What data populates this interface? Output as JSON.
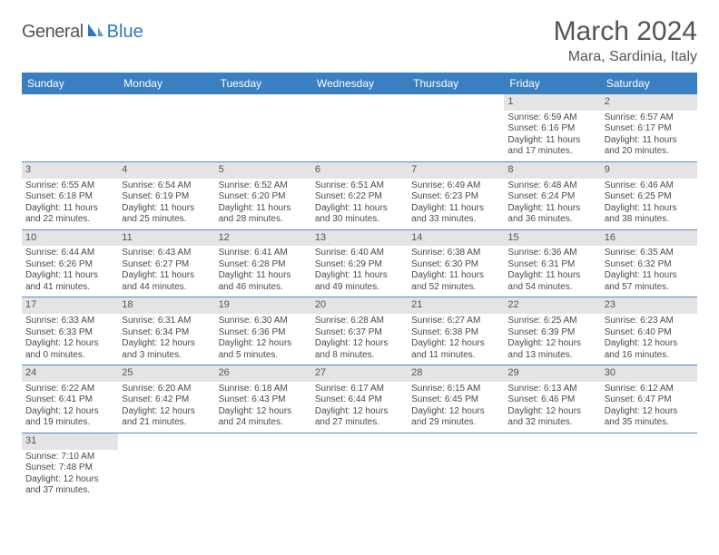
{
  "logo": {
    "word1": "General",
    "word2": "Blue"
  },
  "title": "March 2024",
  "location": "Mara, Sardinia, Italy",
  "colors": {
    "header_bg": "#3a7fc0",
    "header_text": "#ffffff",
    "row_border": "#4e8cc6",
    "daynum_bg": "#e4e4e4",
    "text": "#4a4a4a",
    "logo_blue": "#2f78bc"
  },
  "dow": [
    "Sunday",
    "Monday",
    "Tuesday",
    "Wednesday",
    "Thursday",
    "Friday",
    "Saturday"
  ],
  "weeks": [
    [
      null,
      null,
      null,
      null,
      null,
      {
        "n": "1",
        "sunrise": "Sunrise: 6:59 AM",
        "sunset": "Sunset: 6:16 PM",
        "day1": "Daylight: 11 hours",
        "day2": "and 17 minutes."
      },
      {
        "n": "2",
        "sunrise": "Sunrise: 6:57 AM",
        "sunset": "Sunset: 6:17 PM",
        "day1": "Daylight: 11 hours",
        "day2": "and 20 minutes."
      }
    ],
    [
      {
        "n": "3",
        "sunrise": "Sunrise: 6:55 AM",
        "sunset": "Sunset: 6:18 PM",
        "day1": "Daylight: 11 hours",
        "day2": "and 22 minutes."
      },
      {
        "n": "4",
        "sunrise": "Sunrise: 6:54 AM",
        "sunset": "Sunset: 6:19 PM",
        "day1": "Daylight: 11 hours",
        "day2": "and 25 minutes."
      },
      {
        "n": "5",
        "sunrise": "Sunrise: 6:52 AM",
        "sunset": "Sunset: 6:20 PM",
        "day1": "Daylight: 11 hours",
        "day2": "and 28 minutes."
      },
      {
        "n": "6",
        "sunrise": "Sunrise: 6:51 AM",
        "sunset": "Sunset: 6:22 PM",
        "day1": "Daylight: 11 hours",
        "day2": "and 30 minutes."
      },
      {
        "n": "7",
        "sunrise": "Sunrise: 6:49 AM",
        "sunset": "Sunset: 6:23 PM",
        "day1": "Daylight: 11 hours",
        "day2": "and 33 minutes."
      },
      {
        "n": "8",
        "sunrise": "Sunrise: 6:48 AM",
        "sunset": "Sunset: 6:24 PM",
        "day1": "Daylight: 11 hours",
        "day2": "and 36 minutes."
      },
      {
        "n": "9",
        "sunrise": "Sunrise: 6:46 AM",
        "sunset": "Sunset: 6:25 PM",
        "day1": "Daylight: 11 hours",
        "day2": "and 38 minutes."
      }
    ],
    [
      {
        "n": "10",
        "sunrise": "Sunrise: 6:44 AM",
        "sunset": "Sunset: 6:26 PM",
        "day1": "Daylight: 11 hours",
        "day2": "and 41 minutes."
      },
      {
        "n": "11",
        "sunrise": "Sunrise: 6:43 AM",
        "sunset": "Sunset: 6:27 PM",
        "day1": "Daylight: 11 hours",
        "day2": "and 44 minutes."
      },
      {
        "n": "12",
        "sunrise": "Sunrise: 6:41 AM",
        "sunset": "Sunset: 6:28 PM",
        "day1": "Daylight: 11 hours",
        "day2": "and 46 minutes."
      },
      {
        "n": "13",
        "sunrise": "Sunrise: 6:40 AM",
        "sunset": "Sunset: 6:29 PM",
        "day1": "Daylight: 11 hours",
        "day2": "and 49 minutes."
      },
      {
        "n": "14",
        "sunrise": "Sunrise: 6:38 AM",
        "sunset": "Sunset: 6:30 PM",
        "day1": "Daylight: 11 hours",
        "day2": "and 52 minutes."
      },
      {
        "n": "15",
        "sunrise": "Sunrise: 6:36 AM",
        "sunset": "Sunset: 6:31 PM",
        "day1": "Daylight: 11 hours",
        "day2": "and 54 minutes."
      },
      {
        "n": "16",
        "sunrise": "Sunrise: 6:35 AM",
        "sunset": "Sunset: 6:32 PM",
        "day1": "Daylight: 11 hours",
        "day2": "and 57 minutes."
      }
    ],
    [
      {
        "n": "17",
        "sunrise": "Sunrise: 6:33 AM",
        "sunset": "Sunset: 6:33 PM",
        "day1": "Daylight: 12 hours",
        "day2": "and 0 minutes."
      },
      {
        "n": "18",
        "sunrise": "Sunrise: 6:31 AM",
        "sunset": "Sunset: 6:34 PM",
        "day1": "Daylight: 12 hours",
        "day2": "and 3 minutes."
      },
      {
        "n": "19",
        "sunrise": "Sunrise: 6:30 AM",
        "sunset": "Sunset: 6:36 PM",
        "day1": "Daylight: 12 hours",
        "day2": "and 5 minutes."
      },
      {
        "n": "20",
        "sunrise": "Sunrise: 6:28 AM",
        "sunset": "Sunset: 6:37 PM",
        "day1": "Daylight: 12 hours",
        "day2": "and 8 minutes."
      },
      {
        "n": "21",
        "sunrise": "Sunrise: 6:27 AM",
        "sunset": "Sunset: 6:38 PM",
        "day1": "Daylight: 12 hours",
        "day2": "and 11 minutes."
      },
      {
        "n": "22",
        "sunrise": "Sunrise: 6:25 AM",
        "sunset": "Sunset: 6:39 PM",
        "day1": "Daylight: 12 hours",
        "day2": "and 13 minutes."
      },
      {
        "n": "23",
        "sunrise": "Sunrise: 6:23 AM",
        "sunset": "Sunset: 6:40 PM",
        "day1": "Daylight: 12 hours",
        "day2": "and 16 minutes."
      }
    ],
    [
      {
        "n": "24",
        "sunrise": "Sunrise: 6:22 AM",
        "sunset": "Sunset: 6:41 PM",
        "day1": "Daylight: 12 hours",
        "day2": "and 19 minutes."
      },
      {
        "n": "25",
        "sunrise": "Sunrise: 6:20 AM",
        "sunset": "Sunset: 6:42 PM",
        "day1": "Daylight: 12 hours",
        "day2": "and 21 minutes."
      },
      {
        "n": "26",
        "sunrise": "Sunrise: 6:18 AM",
        "sunset": "Sunset: 6:43 PM",
        "day1": "Daylight: 12 hours",
        "day2": "and 24 minutes."
      },
      {
        "n": "27",
        "sunrise": "Sunrise: 6:17 AM",
        "sunset": "Sunset: 6:44 PM",
        "day1": "Daylight: 12 hours",
        "day2": "and 27 minutes."
      },
      {
        "n": "28",
        "sunrise": "Sunrise: 6:15 AM",
        "sunset": "Sunset: 6:45 PM",
        "day1": "Daylight: 12 hours",
        "day2": "and 29 minutes."
      },
      {
        "n": "29",
        "sunrise": "Sunrise: 6:13 AM",
        "sunset": "Sunset: 6:46 PM",
        "day1": "Daylight: 12 hours",
        "day2": "and 32 minutes."
      },
      {
        "n": "30",
        "sunrise": "Sunrise: 6:12 AM",
        "sunset": "Sunset: 6:47 PM",
        "day1": "Daylight: 12 hours",
        "day2": "and 35 minutes."
      }
    ],
    [
      {
        "n": "31",
        "sunrise": "Sunrise: 7:10 AM",
        "sunset": "Sunset: 7:48 PM",
        "day1": "Daylight: 12 hours",
        "day2": "and 37 minutes."
      },
      null,
      null,
      null,
      null,
      null,
      null
    ]
  ]
}
